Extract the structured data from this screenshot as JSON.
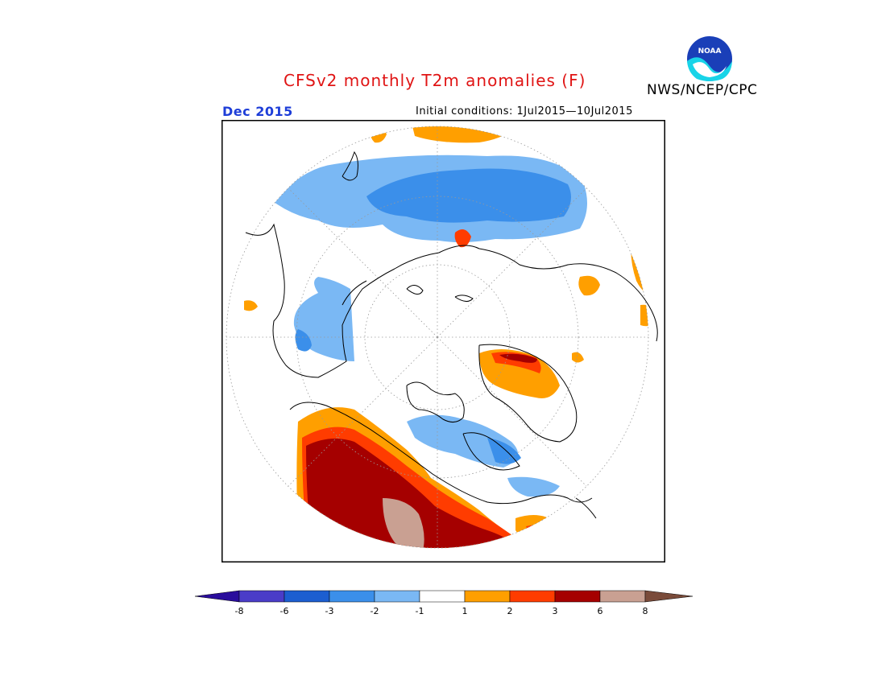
{
  "header": {
    "title": "CFSv2 monthly T2m anomalies (F)",
    "valid_month": "Dec 2015",
    "initial_conditions": "Initial conditions: 1Jul2015—10Jul2015",
    "agency": "NWS/NCEP/CPC",
    "logo_text": "NOAA"
  },
  "map": {
    "projection": "north-polar-stereographic",
    "field": "2m temperature anomaly",
    "units": "F"
  },
  "legend": {
    "ticks": [
      "-8",
      "-6",
      "-3",
      "-2",
      "-1",
      "1",
      "2",
      "3",
      "6",
      "8"
    ],
    "colors": [
      "#2a0d9c",
      "#4a3cc8",
      "#1c5ed0",
      "#3b8fea",
      "#7ab8f4",
      "#ffffff",
      "#ff9f00",
      "#ff3c00",
      "#a50000",
      "#c9a092",
      "#7a4b3a"
    ]
  }
}
